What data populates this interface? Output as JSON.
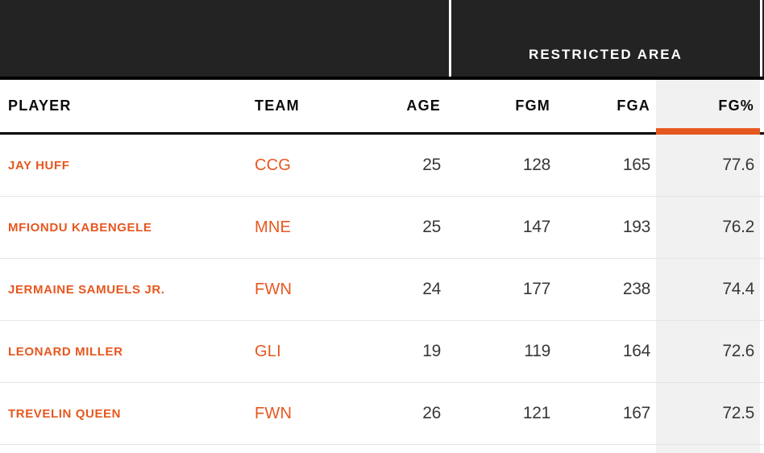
{
  "banner": {
    "group_label": "RESTRICTED AREA"
  },
  "table": {
    "columns": [
      {
        "key": "player",
        "label": "PLAYER"
      },
      {
        "key": "team",
        "label": "TEAM"
      },
      {
        "key": "age",
        "label": "AGE"
      },
      {
        "key": "fgm",
        "label": "FGM"
      },
      {
        "key": "fga",
        "label": "FGA"
      },
      {
        "key": "fgp",
        "label": "FG%",
        "sorted": true
      }
    ],
    "rows": [
      {
        "player": "JAY HUFF",
        "team": "CCG",
        "age": "25",
        "fgm": "128",
        "fga": "165",
        "fgp": "77.6"
      },
      {
        "player": "MFIONDU KABENGELE",
        "team": "MNE",
        "age": "25",
        "fgm": "147",
        "fga": "193",
        "fgp": "76.2"
      },
      {
        "player": "JERMAINE SAMUELS JR.",
        "team": "FWN",
        "age": "24",
        "fgm": "177",
        "fga": "238",
        "fgp": "74.4"
      },
      {
        "player": "LEONARD MILLER",
        "team": "GLI",
        "age": "19",
        "fgm": "119",
        "fga": "164",
        "fgp": "72.6"
      },
      {
        "player": "TREVELIN QUEEN",
        "team": "FWN",
        "age": "26",
        "fgm": "121",
        "fga": "167",
        "fgp": "72.5"
      }
    ]
  },
  "colors": {
    "accent": "#e6571f",
    "banner-bg": "#232323",
    "border-black": "#000000",
    "header-text": "#0a0a0a",
    "number-text": "#383838",
    "sorted-col-bg": "#f1f1f1",
    "row-divider": "#e4e4e4",
    "banner-text": "#ffffff",
    "page-bg": "#ffffff"
  }
}
